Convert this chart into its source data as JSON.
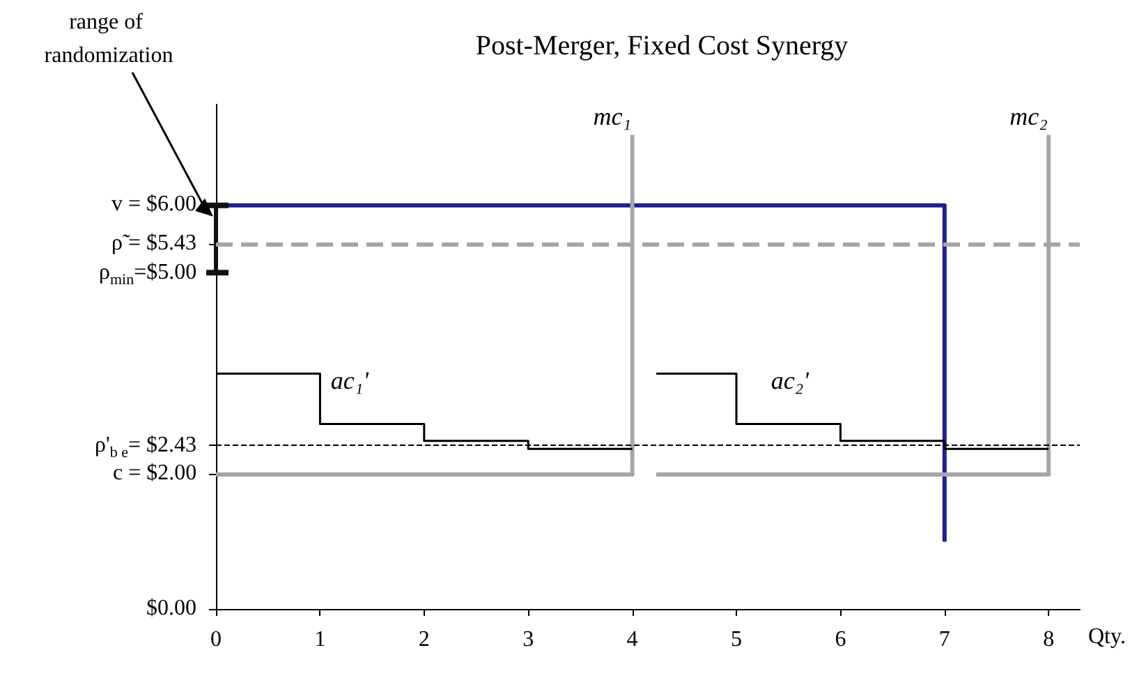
{
  "chart_data": {
    "type": "line",
    "title": "Post-Merger, Fixed Cost Synergy",
    "xlabel": "Qty.",
    "xlim": [
      0,
      8.3
    ],
    "xticks": [
      0,
      1,
      2,
      3,
      4,
      5,
      6,
      7,
      8
    ],
    "ylim": [
      0,
      7.5
    ],
    "yticks": [
      {
        "value": 0,
        "label": "$0.00"
      },
      {
        "value": 2,
        "label": "c =  $2.00"
      },
      {
        "value": 2.43,
        "label": "ρ'$_{b e}$= $2.43"
      },
      {
        "value": 5,
        "label": "ρ$_{min}$=$5.00"
      },
      {
        "value": 5.43,
        "label": "ρ̃ = $5.43"
      },
      {
        "value": 6,
        "label": "v = $6.00"
      }
    ],
    "grid": false,
    "legend": false,
    "marker": "none",
    "series": [
      {
        "color": "#1f1f8f",
        "x": [
          0,
          7,
          7
        ],
        "values": [
          6,
          6,
          1
        ]
      },
      {
        "color": "#111111",
        "x": [
          0,
          0
        ],
        "values": [
          5,
          6
        ]
      },
      {
        "name": "mc₁",
        "color": "#a6a6a6",
        "x": [
          0,
          4,
          4
        ],
        "values": [
          2,
          2,
          7.05
        ]
      },
      {
        "name": "mc₂",
        "color": "#a6a6a6",
        "x": [
          4.23,
          8,
          8
        ],
        "values": [
          2,
          2,
          7.05
        ]
      },
      {
        "name": "ac₁'",
        "color": "#000000",
        "x": [
          0,
          1,
          1,
          2,
          2,
          3,
          3,
          4
        ],
        "values": [
          3.5,
          3.5,
          2.75,
          2.75,
          2.5,
          2.5,
          2.38,
          2.38
        ]
      },
      {
        "name": "ac₂'",
        "color": "#000000",
        "x": [
          4.23,
          5,
          5,
          6,
          6,
          7,
          7,
          8
        ],
        "values": [
          3.5,
          3.5,
          2.75,
          2.75,
          2.5,
          2.5,
          2.38,
          2.38
        ]
      }
    ],
    "ref_lines": [
      {
        "axis": "y",
        "value": 5.43,
        "color": "#a6a6a6",
        "line_style": "dashed"
      },
      {
        "axis": "y",
        "value": 2.43,
        "color": "#000000",
        "line_style": "dashed"
      }
    ],
    "annotations": [
      "range of randomization"
    ]
  }
}
